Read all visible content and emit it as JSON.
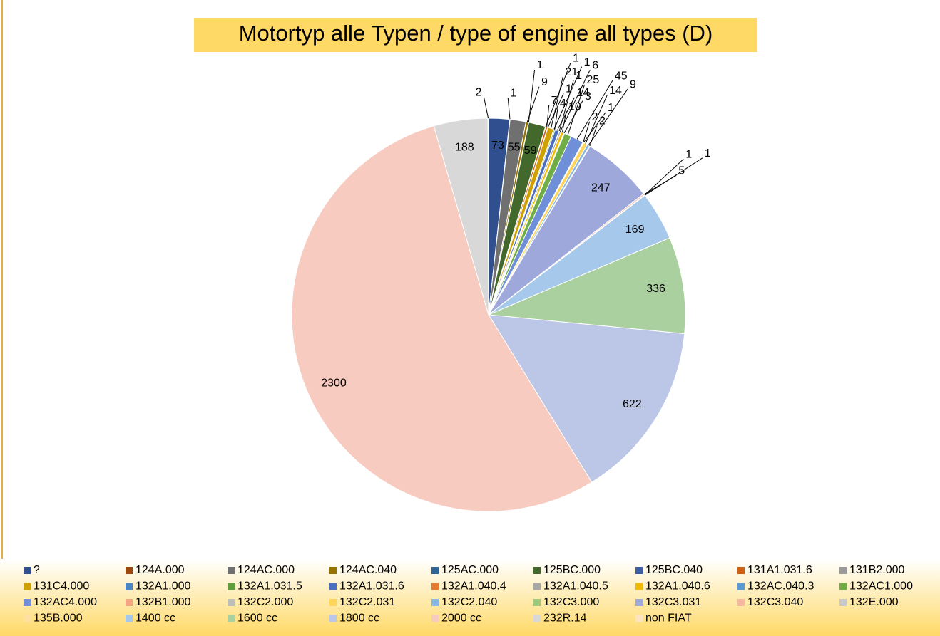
{
  "chart_data": {
    "type": "pie",
    "title": "Motortyp alle Typen / type of engine all types (D)",
    "categories": [
      "?",
      "124A.000",
      "124AC.000",
      "124AC.040",
      "125AC.000",
      "125BC.000",
      "125BC.040",
      "131A1.031.6",
      "131B2.000",
      "131C4.000",
      "132A1.000",
      "132A1.031.5",
      "132A1.031.6",
      "132A1.040.4",
      "132A1.040.5",
      "132A1.040.6",
      "132AC.040.3",
      "132AC1.000",
      "132AC4.000",
      "132B1.000",
      "132C2.000",
      "132C2.031",
      "132C2.040",
      "132C3.000",
      "132C3.031",
      "132C3.040",
      "132E.000",
      "135B.000",
      "1400 cc",
      "1600 cc",
      "1800 cc",
      "2000 cc",
      "232R.14",
      "non FIAT"
    ],
    "values": [
      73,
      1,
      55,
      9,
      1,
      59,
      1,
      7,
      1,
      21,
      1,
      4,
      14,
      1,
      6,
      10,
      3,
      25,
      45,
      2,
      1,
      14,
      9,
      2,
      247,
      5,
      1,
      1,
      169,
      336,
      622,
      2300,
      188,
      2
    ],
    "colors": [
      "#2f4f8f",
      "#9e480e",
      "#707070",
      "#997300",
      "#2e6496",
      "#43682b",
      "#3c5fa8",
      "#d26012",
      "#9a9a9a",
      "#cfa000",
      "#4a86c5",
      "#5f9e3a",
      "#4b6fc0",
      "#e57a30",
      "#a8a8a8",
      "#f2bb00",
      "#5a9bd5",
      "#70ad47",
      "#6f8fd8",
      "#f4a582",
      "#bdbdbd",
      "#ffd45a",
      "#86b6e2",
      "#9cc87c",
      "#9fa8da",
      "#f6b8a0",
      "#c9c9c9",
      "#ffe0a0",
      "#a6c8ea",
      "#abd0a0",
      "#bcc6e6",
      "#f7cbbf",
      "#d8d8d8",
      "#fce4c0"
    ],
    "legend": "bottom"
  }
}
